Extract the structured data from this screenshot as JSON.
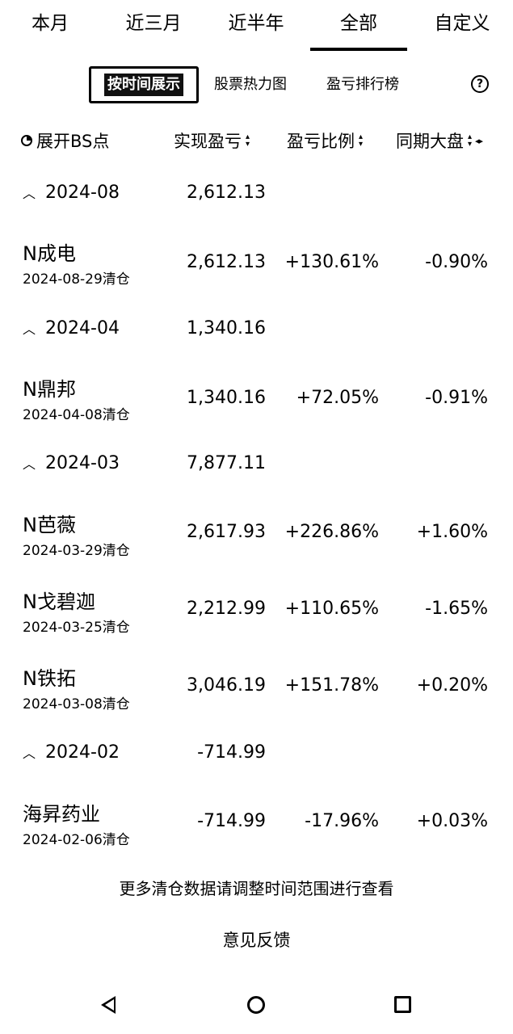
{
  "tabs": [
    {
      "label": "本月"
    },
    {
      "label": "近三月"
    },
    {
      "label": "近半年"
    },
    {
      "label": "全部",
      "active": true
    },
    {
      "label": "自定义"
    }
  ],
  "segments": {
    "time_view": "按时间展示",
    "heatmap": "股票热力图",
    "ranking": "盈亏排行榜",
    "help": "?"
  },
  "header": {
    "bs": "展开BS点",
    "realized": "实现盈亏",
    "ratio": "盈亏比例",
    "market": "同期大盘"
  },
  "groups": [
    {
      "month": "2024-08",
      "total": "2,612.13",
      "stocks": [
        {
          "name": "N成电",
          "date": "2024-08-29清仓",
          "pnl": "2,612.13",
          "ratio": "+130.61%",
          "market": "-0.90%"
        }
      ]
    },
    {
      "month": "2024-04",
      "total": "1,340.16",
      "stocks": [
        {
          "name": "N鼎邦",
          "date": "2024-04-08清仓",
          "pnl": "1,340.16",
          "ratio": "+72.05%",
          "market": "-0.91%"
        }
      ]
    },
    {
      "month": "2024-03",
      "total": "7,877.11",
      "stocks": [
        {
          "name": "N芭薇",
          "date": "2024-03-29清仓",
          "pnl": "2,617.93",
          "ratio": "+226.86%",
          "market": "+1.60%"
        },
        {
          "name": "N戈碧迦",
          "date": "2024-03-25清仓",
          "pnl": "2,212.99",
          "ratio": "+110.65%",
          "market": "-1.65%"
        },
        {
          "name": "N铁拓",
          "date": "2024-03-08清仓",
          "pnl": "3,046.19",
          "ratio": "+151.78%",
          "market": "+0.20%"
        }
      ]
    },
    {
      "month": "2024-02",
      "total": "-714.99",
      "stocks": [
        {
          "name": "海昇药业",
          "date": "2024-02-06清仓",
          "pnl": "-714.99",
          "ratio": "-17.96%",
          "market": "+0.03%"
        }
      ]
    }
  ],
  "footer": {
    "note": "更多清仓数据请调整时间范围进行查看",
    "feedback": "意见反馈"
  }
}
